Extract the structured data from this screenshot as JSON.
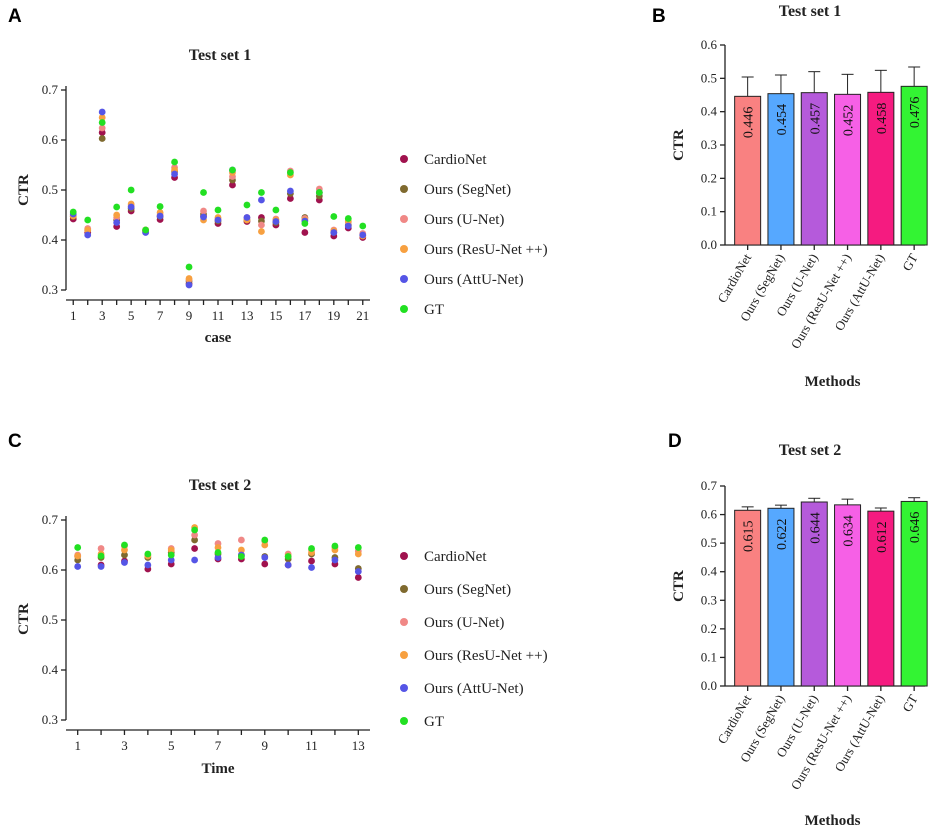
{
  "panels": {
    "A": "A",
    "B": "B",
    "C": "C",
    "D": "D"
  },
  "colors": {
    "CardioNet_dot": "#a0124e",
    "SegNet_dot": "#7f6a2f",
    "UNet_dot": "#f08886",
    "ResUNet_dot": "#f7a040",
    "AttUNet_dot": "#5555e6",
    "GT_dot": "#22e022",
    "CardioNet_bar": "#f98181",
    "SegNet_bar": "#56a8ff",
    "UNet_bar": "#b55adb",
    "ResUNet_bar": "#f660e6",
    "AttUNet_bar": "#f51b80",
    "GT_bar": "#33f433"
  },
  "legend": [
    "CardioNet",
    "Ours (SegNet)",
    "Ours (U-Net)",
    "Ours (ResU-Net ++)",
    "Ours (AttU-Net)",
    "GT"
  ],
  "chart_data": [
    {
      "id": "A",
      "type": "scatter",
      "title": "Test set 1",
      "xlabel": "case",
      "ylabel": "CTR",
      "xlim": [
        0.5,
        21.5
      ],
      "ylim": [
        0.3,
        0.7
      ],
      "xticks": [
        1,
        3,
        5,
        7,
        9,
        11,
        13,
        15,
        17,
        19,
        21
      ],
      "yticks": [
        "0.3",
        "0.4",
        "0.5",
        "0.6",
        "0.7"
      ],
      "x": [
        1,
        2,
        3,
        4,
        5,
        6,
        7,
        8,
        9,
        10,
        11,
        12,
        13,
        14,
        15,
        16,
        17,
        18,
        19,
        20,
        21
      ],
      "series": [
        {
          "name": "CardioNet",
          "values": [
            0.442,
            0.415,
            0.615,
            0.427,
            0.458,
            0.418,
            0.441,
            0.525,
            0.313,
            0.448,
            0.433,
            0.51,
            0.437,
            0.445,
            0.43,
            0.483,
            0.415,
            0.48,
            0.408,
            0.424,
            0.405
          ]
        },
        {
          "name": "Ours (SegNet)",
          "values": [
            0.447,
            0.42,
            0.603,
            0.44,
            0.463,
            0.42,
            0.447,
            0.537,
            0.318,
            0.452,
            0.438,
            0.52,
            0.44,
            0.438,
            0.435,
            0.493,
            0.445,
            0.488,
            0.415,
            0.43,
            0.41
          ]
        },
        {
          "name": "Ours (U-Net)",
          "values": [
            0.45,
            0.423,
            0.624,
            0.445,
            0.468,
            0.416,
            0.45,
            0.545,
            0.321,
            0.458,
            0.442,
            0.527,
            0.445,
            0.43,
            0.442,
            0.538,
            0.443,
            0.502,
            0.42,
            0.436,
            0.413
          ]
        },
        {
          "name": "Ours (ResU-Net ++)",
          "values": [
            0.448,
            0.42,
            0.645,
            0.45,
            0.472,
            0.42,
            0.455,
            0.54,
            0.323,
            0.44,
            0.445,
            0.535,
            0.44,
            0.417,
            0.44,
            0.53,
            0.44,
            0.495,
            0.418,
            0.438,
            0.408
          ]
        },
        {
          "name": "Ours (AttU-Net)",
          "values": [
            0.452,
            0.41,
            0.656,
            0.435,
            0.466,
            0.415,
            0.448,
            0.532,
            0.31,
            0.446,
            0.44,
            0.54,
            0.445,
            0.48,
            0.437,
            0.498,
            0.438,
            0.495,
            0.415,
            0.428,
            0.41
          ]
        },
        {
          "name": "GT",
          "values": [
            0.456,
            0.44,
            0.635,
            0.466,
            0.5,
            0.42,
            0.467,
            0.556,
            0.346,
            0.495,
            0.46,
            0.54,
            0.47,
            0.495,
            0.46,
            0.535,
            0.433,
            0.495,
            0.447,
            0.443,
            0.428
          ]
        }
      ]
    },
    {
      "id": "B",
      "type": "bar",
      "title": "Test set 1",
      "xlabel": "Methods",
      "ylabel": "CTR",
      "ylim": [
        0,
        0.6
      ],
      "yticks": [
        "0.0",
        "0.1",
        "0.2",
        "0.3",
        "0.4",
        "0.5",
        "0.6"
      ],
      "categories": [
        "CardioNet",
        "Ours (SegNet)",
        "Ours (U-Net)",
        "Ours (ResU-Net ++)",
        "Ours (AttU-Net)",
        "GT"
      ],
      "values": [
        0.446,
        0.454,
        0.457,
        0.452,
        0.458,
        0.476
      ],
      "labels": [
        "0.446",
        "0.454",
        "0.457",
        "0.452",
        "0.458",
        "0.476"
      ],
      "errors": [
        0.058,
        0.056,
        0.063,
        0.06,
        0.066,
        0.058
      ]
    },
    {
      "id": "C",
      "type": "scatter",
      "title": "Test set 2",
      "xlabel": "Time",
      "ylabel": "CTR",
      "xlim": [
        0.5,
        13.5
      ],
      "ylim": [
        0.3,
        0.7
      ],
      "xticks": [
        1,
        3,
        5,
        7,
        9,
        11,
        13
      ],
      "yticks": [
        "0.3",
        "0.4",
        "0.5",
        "0.6",
        "0.7"
      ],
      "x": [
        1,
        2,
        3,
        4,
        5,
        6,
        7,
        8,
        9,
        10,
        11,
        12,
        13
      ],
      "series": [
        {
          "name": "CardioNet",
          "values": [
            0.628,
            0.61,
            0.618,
            0.602,
            0.612,
            0.643,
            0.622,
            0.622,
            0.612,
            0.61,
            0.618,
            0.612,
            0.585
          ]
        },
        {
          "name": "Ours (SegNet)",
          "values": [
            0.62,
            0.625,
            0.63,
            0.625,
            0.635,
            0.66,
            0.632,
            0.63,
            0.627,
            0.622,
            0.632,
            0.625,
            0.603
          ]
        },
        {
          "name": "Ours (U-Net)",
          "values": [
            0.63,
            0.643,
            0.648,
            0.63,
            0.643,
            0.67,
            0.653,
            0.66,
            0.658,
            0.632,
            0.64,
            0.645,
            0.638
          ]
        },
        {
          "name": "Ours (ResU-Net ++)",
          "values": [
            0.628,
            0.632,
            0.64,
            0.628,
            0.64,
            0.685,
            0.645,
            0.64,
            0.65,
            0.628,
            0.635,
            0.64,
            0.632
          ]
        },
        {
          "name": "Ours (AttU-Net)",
          "values": [
            0.607,
            0.607,
            0.615,
            0.61,
            0.62,
            0.62,
            0.625,
            0.63,
            0.625,
            0.61,
            0.605,
            0.62,
            0.597
          ]
        },
        {
          "name": "GT",
          "values": [
            0.645,
            0.628,
            0.65,
            0.632,
            0.63,
            0.68,
            0.635,
            0.627,
            0.66,
            0.627,
            0.643,
            0.648,
            0.645
          ]
        }
      ]
    },
    {
      "id": "D",
      "type": "bar",
      "title": "Test set 2",
      "xlabel": "Methods",
      "ylabel": "CTR",
      "ylim": [
        0,
        0.7
      ],
      "yticks": [
        "0.0",
        "0.1",
        "0.2",
        "0.3",
        "0.4",
        "0.5",
        "0.6",
        "0.7"
      ],
      "categories": [
        "CardioNet",
        "Ours (SegNet)",
        "Ours (U-Net)",
        "Ours (ResU-Net ++)",
        "Ours (AttU-Net)",
        "GT"
      ],
      "values": [
        0.615,
        0.622,
        0.644,
        0.634,
        0.612,
        0.646
      ],
      "labels": [
        "0.615",
        "0.622",
        "0.644",
        "0.634",
        "0.612",
        "0.646"
      ],
      "errors": [
        0.012,
        0.011,
        0.013,
        0.02,
        0.011,
        0.013
      ]
    }
  ]
}
